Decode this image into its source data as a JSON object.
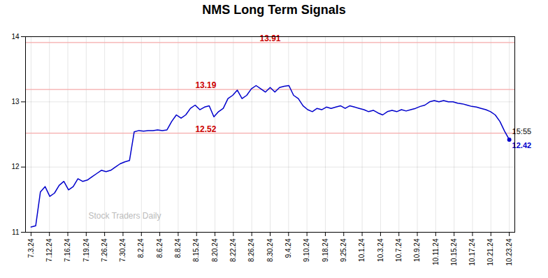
{
  "chart_data": {
    "type": "line",
    "title": "NMS Long Term Signals",
    "color": "#0000cc",
    "grid": true,
    "xlim": [
      -0.3,
      26.3
    ],
    "xticks": [
      {
        "value": 0,
        "label": "7.3.24"
      },
      {
        "value": 1,
        "label": "7.12.24"
      },
      {
        "value": 2,
        "label": "7.16.24"
      },
      {
        "value": 3,
        "label": "7.19.24"
      },
      {
        "value": 4,
        "label": "7.26.24"
      },
      {
        "value": 5,
        "label": "7.30.24"
      },
      {
        "value": 6,
        "label": "8.2.24"
      },
      {
        "value": 7,
        "label": "8.6.24"
      },
      {
        "value": 8,
        "label": "8.8.24"
      },
      {
        "value": 9,
        "label": "8.15.24"
      },
      {
        "value": 10,
        "label": "8.20.24"
      },
      {
        "value": 11,
        "label": "8.22.24"
      },
      {
        "value": 12,
        "label": "8.26.24"
      },
      {
        "value": 13,
        "label": "8.30.24"
      },
      {
        "value": 14,
        "label": "9.4.24"
      },
      {
        "value": 15,
        "label": "9.10.24"
      },
      {
        "value": 16,
        "label": "9.18.24"
      },
      {
        "value": 17,
        "label": "9.25.24"
      },
      {
        "value": 18,
        "label": "10.1.24"
      },
      {
        "value": 19,
        "label": "10.3.24"
      },
      {
        "value": 20,
        "label": "10.7.24"
      },
      {
        "value": 21,
        "label": "10.9.24"
      },
      {
        "value": 22,
        "label": "10.11.24"
      },
      {
        "value": 23,
        "label": "10.15.24"
      },
      {
        "value": 24,
        "label": "10.17.24"
      },
      {
        "value": 25,
        "label": "10.21.24"
      },
      {
        "value": 26,
        "label": "10.23.24"
      }
    ],
    "ylim": [
      11.0,
      14.0
    ],
    "yticks": [
      11,
      12,
      13,
      14
    ],
    "x": [
      0,
      0.254902,
      0.509804,
      0.764706,
      1.019608,
      1.27451,
      1.529412,
      1.784314,
      2.039216,
      2.294118,
      2.54902,
      2.803922,
      3.058824,
      3.313725,
      3.568627,
      3.823529,
      4.078431,
      4.333333,
      4.588235,
      4.843137,
      5.098039,
      5.352941,
      5.607843,
      5.862745,
      6.117647,
      6.372549,
      6.627451,
      6.882353,
      7.137255,
      7.392157,
      7.647059,
      7.901961,
      8.156863,
      8.411765,
      8.666667,
      8.921569,
      9.176471,
      9.431373,
      9.686275,
      9.941176,
      10.196078,
      10.45098,
      10.705882,
      10.960784,
      11.215686,
      11.470588,
      11.72549,
      11.980392,
      12.235294,
      12.490196,
      12.745098,
      13,
      13.254902,
      13.509804,
      13.764706,
      14.019608,
      14.27451,
      14.529412,
      14.784314,
      15.039216,
      15.294118,
      15.54902,
      15.803922,
      16.058824,
      16.313725,
      16.568627,
      16.823529,
      17.078431,
      17.333333,
      17.588235,
      17.843137,
      18.098039,
      18.352941,
      18.607843,
      18.862745,
      19.117647,
      19.372549,
      19.627451,
      19.882353,
      20.137255,
      20.392157,
      20.647059,
      20.901961,
      21.156863,
      21.411765,
      21.666667,
      21.921569,
      22.176471,
      22.431373,
      22.686275,
      22.941176,
      23.196078,
      23.45098,
      23.705882,
      23.960784,
      24.215686,
      24.470588,
      24.72549,
      24.980392,
      25.235294,
      25.490196,
      25.745098,
      26
    ],
    "values": [
      11.08,
      11.1,
      11.62,
      11.7,
      11.55,
      11.6,
      11.72,
      11.78,
      11.65,
      11.7,
      11.82,
      11.78,
      11.8,
      11.85,
      11.9,
      11.95,
      11.93,
      11.95,
      12.0,
      12.05,
      12.08,
      12.1,
      12.54,
      12.56,
      12.55,
      12.56,
      12.56,
      12.57,
      12.56,
      12.57,
      12.7,
      12.8,
      12.75,
      12.8,
      12.9,
      12.95,
      12.88,
      12.92,
      12.94,
      12.77,
      12.85,
      12.9,
      13.05,
      13.1,
      13.18,
      13.05,
      13.1,
      13.2,
      13.25,
      13.2,
      13.15,
      13.22,
      13.15,
      13.22,
      13.24,
      13.25,
      13.1,
      13.05,
      12.94,
      12.88,
      12.85,
      12.9,
      12.88,
      12.92,
      12.9,
      12.92,
      12.94,
      12.9,
      12.94,
      12.92,
      12.9,
      12.88,
      12.85,
      12.87,
      12.83,
      12.8,
      12.85,
      12.87,
      12.85,
      12.88,
      12.86,
      12.88,
      12.9,
      12.93,
      12.95,
      13.0,
      13.02,
      13.0,
      13.02,
      13.0,
      13.0,
      12.98,
      12.97,
      12.95,
      12.93,
      12.92,
      12.9,
      12.88,
      12.85,
      12.8,
      12.7,
      12.55,
      12.42
    ],
    "reference_lines": [
      {
        "value": 13.91,
        "color": "#f5aaaa"
      },
      {
        "value": 13.19,
        "color": "#f5aaaa"
      },
      {
        "value": 12.52,
        "color": "#f5aaaa"
      }
    ],
    "annotations": [
      {
        "text": "13.91",
        "x": 13.0,
        "y": 13.91,
        "color": "#cc0000"
      },
      {
        "text": "13.19",
        "x": 9.5,
        "y": 13.19,
        "color": "#cc0000"
      },
      {
        "text": "12.52",
        "x": 9.5,
        "y": 12.52,
        "color": "#cc0000"
      }
    ],
    "last_point": {
      "label": "15:55",
      "value": 12.42,
      "color": "#0000cc"
    },
    "watermark": "Stock Traders Daily"
  }
}
